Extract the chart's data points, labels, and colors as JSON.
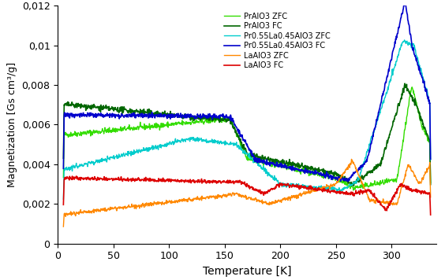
{
  "title": "",
  "xlabel": "Temperature [K]",
  "ylabel": "Magnetization [Gs cm³/g]",
  "xlim": [
    0,
    340
  ],
  "ylim": [
    0,
    0.012
  ],
  "yticks": [
    0,
    0.002,
    0.004,
    0.006,
    0.008,
    0.01,
    0.012
  ],
  "xticks": [
    0,
    50,
    100,
    150,
    200,
    250,
    300
  ],
  "legend_labels": [
    "PrAlO3 ZFC",
    "PrAlO3 FC",
    "Pr0.55La0.45AlO3 ZFC",
    "Pr0.55La0.45AlO3 FC",
    "LaAlO3 ZFC",
    "LaAlO3 FC"
  ],
  "legend_colors": [
    "#33dd00",
    "#006600",
    "#00cccc",
    "#0000cc",
    "#ff8800",
    "#dd0000"
  ],
  "background_color": "#ffffff",
  "figsize": [
    5.64,
    3.56
  ],
  "dpi": 100
}
